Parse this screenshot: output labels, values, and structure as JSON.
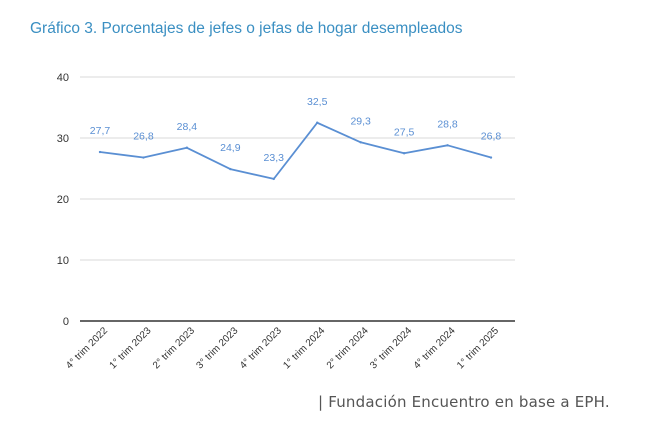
{
  "chart_data": {
    "type": "line",
    "title": "Gráfico 3. Porcentajes de jefes o jefas de hogar desempleados",
    "categories": [
      "4° trim 2022",
      "1° trim 2023",
      "2° trim 2023",
      "3° trim 2023",
      "4° trim 2023",
      "1° trim 2024",
      "2° trim 2024",
      "3° trim 2024",
      "4° trim 2024",
      "1° trim 2025"
    ],
    "series": [
      {
        "values": [
          27.7,
          26.8,
          28.4,
          24.9,
          23.3,
          32.5,
          29.3,
          27.5,
          28.8,
          26.8
        ],
        "labels": [
          "27,7",
          "26,8",
          "28,4",
          "24,9",
          "23,3",
          "32,5",
          "29,3",
          "27,5",
          "28,8",
          "26,8"
        ],
        "color": "#5a8fd3"
      }
    ],
    "yticks": [
      "0",
      "10",
      "20",
      "30",
      "40"
    ],
    "ylim": [
      0,
      40
    ],
    "grid": true,
    "legend": false
  },
  "source": "| Fundación Encuentro en base a EPH.",
  "colors": {
    "title": "#3a8fc2",
    "line": "#5a8fd3",
    "grid": "#d9d9d9",
    "axis": "#333333",
    "tick_text": "#333333",
    "source_text": "#555555"
  }
}
